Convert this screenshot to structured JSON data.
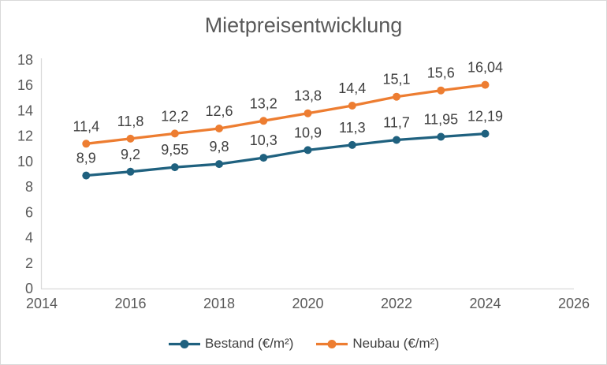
{
  "chart_data": {
    "type": "line",
    "title": "Mietpreisentwicklung",
    "x": [
      2015,
      2016,
      2017,
      2018,
      2019,
      2020,
      2021,
      2022,
      2023,
      2024
    ],
    "series": [
      {
        "name": "Bestand (€/m²)",
        "color": "#1F617F",
        "values": [
          8.9,
          9.2,
          9.55,
          9.8,
          10.3,
          10.9,
          11.3,
          11.7,
          11.95,
          12.19
        ],
        "labels": [
          "8,9",
          "9,2",
          "9,55",
          "9,8",
          "10,3",
          "10,9",
          "11,3",
          "11,7",
          "11,95",
          "12,19"
        ]
      },
      {
        "name": "Neubau (€/m²)",
        "color": "#ED7D31",
        "values": [
          11.4,
          11.8,
          12.2,
          12.6,
          13.2,
          13.8,
          14.4,
          15.1,
          15.6,
          16.04
        ],
        "labels": [
          "11,4",
          "11,8",
          "12,2",
          "12,6",
          "13,2",
          "13,8",
          "14,4",
          "15,1",
          "15,6",
          "16,04"
        ]
      }
    ],
    "xlim": [
      2014,
      2026
    ],
    "ylim": [
      0,
      18
    ],
    "x_ticks": [
      2014,
      2016,
      2018,
      2020,
      2022,
      2024,
      2026
    ],
    "y_ticks": [
      0,
      2,
      4,
      6,
      8,
      10,
      12,
      14,
      16,
      18
    ],
    "grid": false,
    "legend_position": "bottom"
  },
  "colors": {
    "background": "#FFFFFF",
    "border": "#D9D9D9",
    "axis_line": "#D9D9D9",
    "tick_text": "#595959",
    "title_text": "#595959",
    "data_label_text": "#404040"
  }
}
